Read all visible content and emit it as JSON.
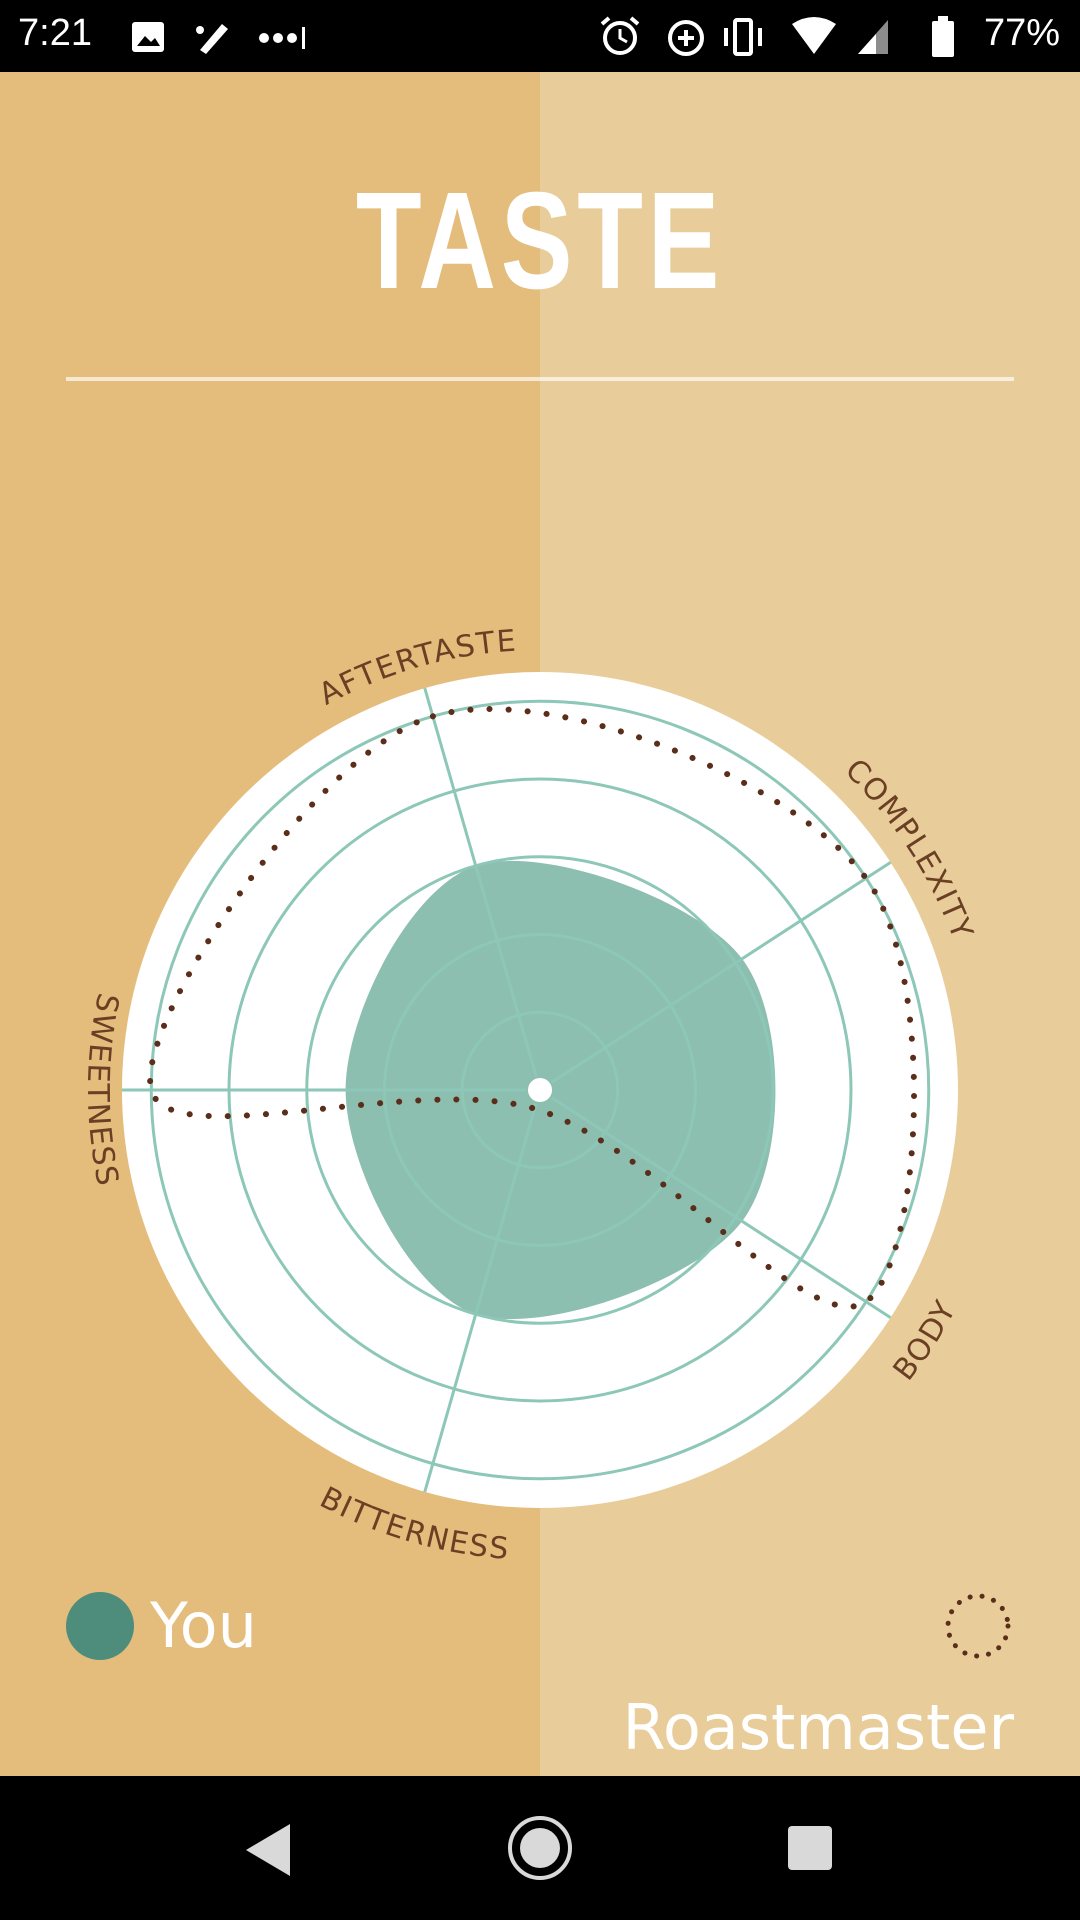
{
  "status_bar": {
    "time": "7:21",
    "battery_percent": "77%",
    "left_icons": [
      "image-icon",
      "edit-icon",
      "more-icon"
    ],
    "right_icons": [
      "alarm-icon",
      "data-saver-icon",
      "vibrate-icon",
      "wifi-icon",
      "signal-icon",
      "battery-icon"
    ]
  },
  "page": {
    "title": "TASTE"
  },
  "radar": {
    "axes": [
      "AFTERTASTE",
      "COMPLEXITY",
      "BODY",
      "BITTERNESS",
      "SWEETNESS"
    ],
    "rings": 5,
    "series": [
      {
        "name": "You",
        "values": [
          0.6,
          0.62,
          0.62,
          0.6,
          0.5
        ],
        "color": "#8dbfb1"
      },
      {
        "name": "Roastmaster",
        "values": [
          1.0,
          1.0,
          1.0,
          0.05,
          1.0
        ],
        "color": "#5a2e1a"
      }
    ]
  },
  "legend": {
    "you_label": "You",
    "roastmaster_label": "Roastmaster",
    "you_color": "#4e8c7c",
    "roastmaster_color": "#5a2e1a"
  },
  "nav_bar": {
    "icons": [
      "back-icon",
      "home-icon",
      "recents-icon"
    ]
  }
}
